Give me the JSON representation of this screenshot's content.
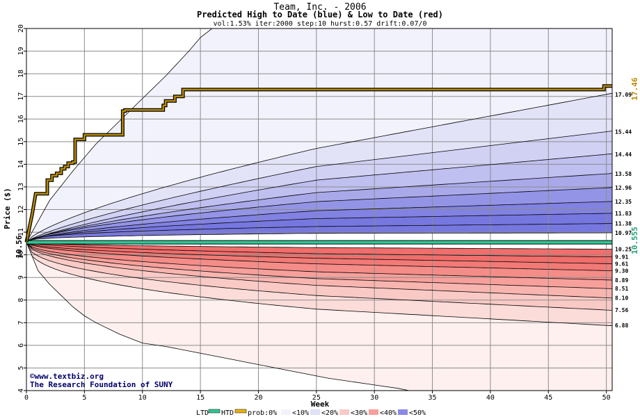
{
  "chart_data": {
    "type": "area",
    "title": "Team, Inc. - 2006",
    "subtitle": "Predicted High to Date (blue) &  Low to Date (red)",
    "params": "vol:1.53% iter:2000 step:10 hurst:0.57 drift:0.07/0",
    "xlabel": "Week",
    "ylabel": "Price ($)",
    "xlim": [
      0,
      50.5
    ],
    "ylim": [
      4,
      20
    ],
    "x_ticks": [
      0,
      5,
      10,
      15,
      20,
      25,
      30,
      35,
      40,
      45,
      50
    ],
    "y_ticks": [
      4,
      5,
      6,
      7,
      8,
      9,
      10,
      11,
      12,
      13,
      14,
      15,
      16,
      17,
      18,
      19,
      20
    ],
    "grid": true,
    "start_price": 10.56,
    "start_label": "10.56",
    "ltd_final_label": "10.555",
    "htd_final_label": "17.46",
    "high_quantiles": [
      {
        "label": "17.09",
        "y0": 10.56,
        "y10": 12.7,
        "y25": 14.7,
        "y50": 17.09
      },
      {
        "label": "15.44",
        "y0": 10.56,
        "y10": 12.2,
        "y25": 13.9,
        "y50": 15.44
      },
      {
        "label": "14.44",
        "y0": 10.56,
        "y10": 11.9,
        "y25": 13.3,
        "y50": 14.44
      },
      {
        "label": "13.58",
        "y0": 10.56,
        "y10": 11.7,
        "y25": 12.75,
        "y50": 13.58
      },
      {
        "label": "12.96",
        "y0": 10.56,
        "y10": 11.55,
        "y25": 12.35,
        "y50": 12.96
      },
      {
        "label": "12.35",
        "y0": 10.56,
        "y10": 11.35,
        "y25": 11.95,
        "y50": 12.35
      },
      {
        "label": "11.83",
        "y0": 10.56,
        "y10": 11.2,
        "y25": 11.6,
        "y50": 11.83
      },
      {
        "label": "11.38",
        "y0": 10.56,
        "y10": 11.05,
        "y25": 11.25,
        "y50": 11.38
      },
      {
        "label": "10.97",
        "y0": 10.56,
        "y10": 10.85,
        "y25": 10.95,
        "y50": 10.97
      }
    ],
    "low_quantiles": [
      {
        "label": "10.25",
        "y0": 10.56,
        "y10": 10.4,
        "y25": 10.32,
        "y50": 10.25
      },
      {
        "label": "9.91",
        "y0": 10.56,
        "y10": 10.25,
        "y25": 10.05,
        "y50": 9.91
      },
      {
        "label": "9.61",
        "y0": 10.56,
        "y10": 10.1,
        "y25": 9.85,
        "y50": 9.61
      },
      {
        "label": "9.30",
        "y0": 10.56,
        "y10": 9.95,
        "y25": 9.6,
        "y50": 9.3
      },
      {
        "label": "8.89",
        "y0": 10.56,
        "y10": 9.7,
        "y25": 9.25,
        "y50": 8.89
      },
      {
        "label": "8.51",
        "y0": 10.56,
        "y10": 9.5,
        "y25": 8.95,
        "y50": 8.51
      },
      {
        "label": "8.10",
        "y0": 10.56,
        "y10": 9.3,
        "y25": 8.65,
        "y50": 8.1
      },
      {
        "label": "7.56",
        "y0": 10.56,
        "y10": 8.95,
        "y25": 8.2,
        "y50": 7.56
      },
      {
        "label": "6.88",
        "y0": 10.56,
        "y10": 8.5,
        "y25": 7.6,
        "y50": 6.88
      }
    ],
    "envelope_high": {
      "x": [
        0,
        2,
        4,
        6,
        8,
        10,
        12,
        14,
        15,
        16,
        18,
        20,
        22
      ],
      "y": [
        10.56,
        12.4,
        13.7,
        14.9,
        15.9,
        16.9,
        17.9,
        19.0,
        19.6,
        20.0,
        20.0,
        20.0,
        20.0
      ]
    },
    "envelope_low": {
      "x": [
        0,
        1,
        2,
        3,
        4,
        5,
        6,
        8,
        10,
        12,
        14,
        16,
        18,
        20,
        22,
        24,
        26,
        28,
        30,
        32,
        33
      ],
      "y": [
        10.56,
        9.3,
        8.7,
        8.2,
        7.7,
        7.3,
        7.0,
        6.5,
        6.1,
        5.95,
        5.75,
        5.55,
        5.35,
        5.15,
        4.95,
        4.75,
        4.55,
        4.4,
        4.25,
        4.1,
        4.0
      ]
    },
    "htd": {
      "x": [
        0,
        0.5,
        0.8,
        1.5,
        1.8,
        2.2,
        2.6,
        3,
        3.3,
        3.6,
        4,
        4.2,
        4.7,
        5.0,
        5.3,
        6,
        8.1,
        8.3,
        8.5,
        10.6,
        11.8,
        12.0,
        12.6,
        12.8,
        13.3,
        13.5,
        49.4,
        49.8,
        50.5
      ],
      "y": [
        10.56,
        11.8,
        12.7,
        12.7,
        13.3,
        13.5,
        13.6,
        13.8,
        13.9,
        14.05,
        14.1,
        15.1,
        15.1,
        15.3,
        15.3,
        15.3,
        15.3,
        16.35,
        16.4,
        16.4,
        16.6,
        16.8,
        16.8,
        17.0,
        17.0,
        17.3,
        17.3,
        17.46,
        17.46
      ]
    },
    "ltd": {
      "x": [
        0,
        50.5
      ],
      "y": [
        10.555,
        10.555
      ]
    },
    "band_colors": {
      "high": [
        "#f2f2fc",
        "#e3e3f8",
        "#d1d1f4",
        "#bfbff0",
        "#a9a9ea",
        "#9494e6",
        "#8282e2",
        "#7777e0"
      ],
      "low": [
        "#fdf0ee",
        "#fbdcd9",
        "#f9c9c5",
        "#f8b5b0",
        "#f7a09b",
        "#f48c88",
        "#f27a76",
        "#f06e6b"
      ]
    },
    "htd_color": "#b88a00",
    "ltd_color": "#30c896",
    "legend": {
      "items": [
        "LTD",
        "HTD",
        "prob:0%",
        "<10%",
        "<20%",
        "<30%",
        "<40%",
        "<50%"
      ],
      "position": "bottom",
      "swatches": [
        "#f2f2fc",
        "#e0e0f7",
        "#c8c8f2",
        "#a8a8ea",
        "#8a8ae4",
        "#f9c9c5"
      ]
    },
    "credits": [
      "©www.textbiz.org",
      "The Research Foundation of SUNY"
    ]
  }
}
